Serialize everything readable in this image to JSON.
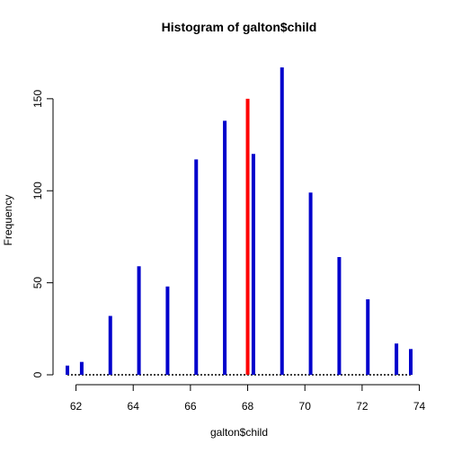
{
  "chart_data": {
    "type": "bar",
    "title": "Histogram of galton$child",
    "xlabel": "galton$child",
    "ylabel": "Frequency",
    "xlim": [
      61.7,
      73.7
    ],
    "ylim": [
      0,
      168
    ],
    "xticks": [
      62,
      64,
      66,
      68,
      70,
      72,
      74
    ],
    "yticks": [
      0,
      50,
      100,
      150
    ],
    "bar_color": "#0000cc",
    "highlight_color": "#ff0000",
    "series": [
      {
        "x": [
          61.7,
          62.2,
          63.2,
          64.2,
          65.2,
          66.2,
          67.2,
          68.2,
          69.2,
          70.2,
          71.2,
          72.2,
          73.2,
          73.7
        ],
        "values": [
          5,
          7,
          32,
          59,
          48,
          117,
          138,
          120,
          167,
          99,
          64,
          41,
          17,
          14
        ]
      }
    ],
    "highlight": {
      "x": 68.0,
      "value": 150
    }
  }
}
